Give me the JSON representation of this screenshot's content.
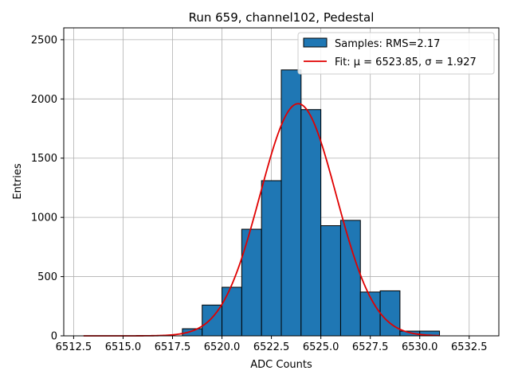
{
  "chart_data": {
    "type": "bar",
    "title": "Run 659, channel102, Pedestal",
    "xlabel": "ADC Counts",
    "ylabel": "Entries",
    "xlim": [
      6512.0,
      6534.0
    ],
    "ylim": [
      0,
      2600
    ],
    "xticks": [
      "6512.5",
      "6515.0",
      "6517.5",
      "6520.0",
      "6522.5",
      "6525.0",
      "6527.5",
      "6530.0",
      "6532.5"
    ],
    "xtick_values": [
      6512.5,
      6515.0,
      6517.5,
      6520.0,
      6522.5,
      6525.0,
      6527.5,
      6530.0,
      6532.5
    ],
    "yticks": [
      "0",
      "500",
      "1000",
      "1500",
      "2000",
      "2500"
    ],
    "ytick_values": [
      0,
      500,
      1000,
      1500,
      2000,
      2500
    ],
    "grid": true,
    "legend_position": "top-right",
    "histogram": {
      "name": "Samples: RMS=2.17",
      "color": "#1f77b4",
      "bin_edges": [
        6518,
        6519,
        6520,
        6521,
        6522,
        6523,
        6524,
        6525,
        6526,
        6527,
        6528,
        6529,
        6530,
        6531
      ],
      "counts": [
        60,
        260,
        410,
        900,
        1310,
        2245,
        1910,
        930,
        975,
        370,
        380,
        40,
        40
      ]
    },
    "fit": {
      "name": "Fit: μ = 6523.85, σ = 1.927",
      "color": "#e00000",
      "type": "gaussian",
      "mu": 6523.85,
      "sigma": 1.927,
      "amplitude": 1960,
      "x_range": [
        6513.0,
        6531.0
      ]
    }
  }
}
